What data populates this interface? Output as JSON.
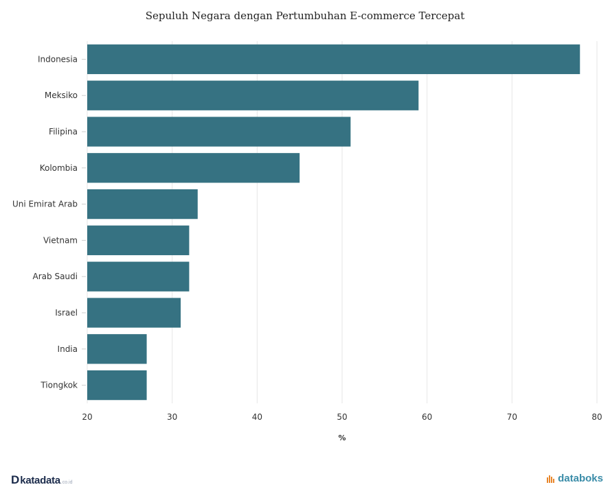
{
  "chart_data": {
    "type": "bar",
    "orientation": "horizontal",
    "title": "Sepuluh Negara dengan Pertumbuhan E-commerce Tercepat",
    "xlabel": "%",
    "ylabel": "",
    "categories": [
      "Indonesia",
      "Meksiko",
      "Filipina",
      "Kolombia",
      "Uni Emirat Arab",
      "Vietnam",
      "Arab Saudi",
      "Israel",
      "India",
      "Tiongkok"
    ],
    "values": [
      78,
      59,
      51,
      45,
      33,
      32,
      32,
      31,
      27,
      27
    ],
    "xlim": [
      20,
      80
    ],
    "xticks": [
      "20",
      "30",
      "40",
      "50",
      "60",
      "70",
      "80"
    ],
    "grid": true,
    "bar_color": "#367282"
  },
  "footer": {
    "left_logo_mark": "D",
    "left_logo_text": "katadata",
    "left_logo_suffix": ".co.id",
    "right_logo_text": "databoks",
    "brand_color": "#1b2b4b",
    "accent_color": "#3a8ca8"
  }
}
